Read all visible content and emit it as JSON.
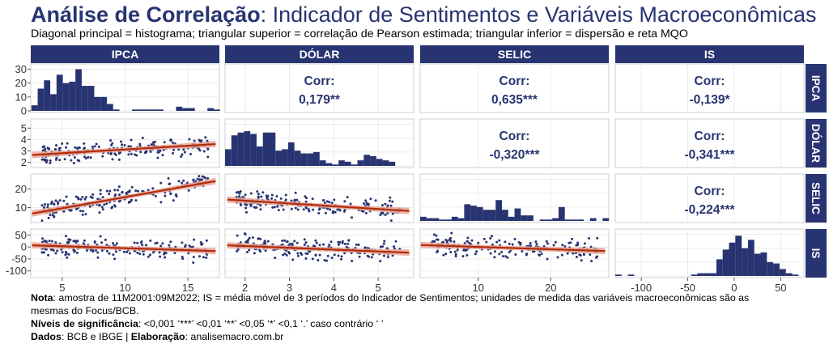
{
  "title": {
    "bold": "Análise de Correlação",
    "rest": ": Indicador de Sentimentos e Variáveis Macroeconômicas"
  },
  "subtitle": "Diagonal principal = histograma; triangular superior = correlação de Pearson estimada; triangular inferior = dispersão e reta MQO",
  "colors": {
    "header_bg": "#283471",
    "points": "#283471",
    "bars": "#283471",
    "fit_line": "#b22a08",
    "fit_band": "#e8a79a",
    "text_dark": "#283471",
    "grid": "#ebebeb"
  },
  "variables": [
    "IPCA",
    "DÓLAR",
    "SELIC",
    "IS"
  ],
  "corr_label": "Corr:",
  "correlations": [
    {
      "row": 0,
      "col": 1,
      "value": "0,179**"
    },
    {
      "row": 0,
      "col": 2,
      "value": "0,635***"
    },
    {
      "row": 0,
      "col": 3,
      "value": "-0,139*"
    },
    {
      "row": 1,
      "col": 2,
      "value": "-0,320***"
    },
    {
      "row": 1,
      "col": 3,
      "value": "-0,341***"
    },
    {
      "row": 2,
      "col": 3,
      "value": "-0,224***"
    }
  ],
  "y_ticks": [
    {
      "row": 0,
      "labels": [
        "0",
        "10",
        "20",
        "30"
      ]
    },
    {
      "row": 1,
      "labels": [
        "2",
        "3",
        "4",
        "5"
      ]
    },
    {
      "row": 2,
      "labels": [
        "10",
        "20"
      ]
    },
    {
      "row": 3,
      "labels": [
        "-100",
        "-50",
        "0",
        "50"
      ]
    }
  ],
  "x_ticks": [
    {
      "col": 0,
      "labels": [
        "5",
        "10",
        "15"
      ]
    },
    {
      "col": 1,
      "labels": [
        "2",
        "3",
        "4",
        "5"
      ]
    },
    {
      "col": 2,
      "labels": [
        "10",
        "20"
      ]
    },
    {
      "col": 3,
      "labels": [
        "-100",
        "-50",
        "0",
        "50"
      ]
    }
  ],
  "notes": {
    "nota_label": "Nota",
    "nota_text1": ": amostra de 11M2001:09M2022; IS = média móvel de 3 períodos do Indicador de Sentimentos; unidades de medida das variáveis macroeconômicas são as",
    "nota_text2": "mesmas do Focus/BCB.",
    "sig_label": "Níveis de significância",
    "sig_text": ": <0,001 ‘***’      <0,01 ‘**’  <0,05  ‘*’      <0,1 ‘.’      caso contrário ‘    ’",
    "dados_label": "Dados",
    "dados_text": ": BCB e IBGE | ",
    "elab_label": "Elaboração",
    "elab_text": ": analisemacro.com.br"
  },
  "chart_data": {
    "type": "scatter",
    "title": "Análise de Correlação: Indicador de Sentimentos e Variáveis Macroeconômicas",
    "variables": [
      "IPCA",
      "DÓLAR",
      "SELIC",
      "IS"
    ],
    "ranges": {
      "IPCA": [
        2.5,
        17.5
      ],
      "DÓLAR": [
        1.55,
        5.8
      ],
      "SELIC": [
        2,
        28
      ],
      "IS": [
        -128,
        75
      ]
    },
    "correlation_matrix": [
      [
        1,
        0.179,
        0.635,
        -0.139
      ],
      [
        0.179,
        1,
        -0.32,
        -0.341
      ],
      [
        0.635,
        -0.32,
        1,
        -0.224
      ],
      [
        -0.139,
        -0.341,
        -0.224,
        1
      ]
    ],
    "fits": {
      "DÓLAR~IPCA": {
        "x": [
          2.6,
          17.2
        ],
        "y": [
          2.65,
          3.6
        ]
      },
      "SELIC~IPCA": {
        "x": [
          2.6,
          17.2
        ],
        "y": [
          6.8,
          24.2
        ]
      },
      "IS~IPCA": {
        "x": [
          2.6,
          17.2
        ],
        "y": [
          7,
          -17
        ]
      },
      "SELIC~DÓLAR": {
        "x": [
          1.6,
          5.7
        ],
        "y": [
          14.3,
          8.2
        ]
      },
      "IS~DÓLAR": {
        "x": [
          1.6,
          5.7
        ],
        "y": [
          7,
          -24
        ]
      },
      "IS~SELIC": {
        "x": [
          2.1,
          27.5
        ],
        "y": [
          8,
          -17
        ]
      }
    },
    "histograms": {
      "IPCA": {
        "edges_start": 2.55,
        "bin_width": 0.5,
        "counts": [
          4,
          16,
          22,
          12,
          26,
          20,
          21,
          30,
          18,
          18,
          10,
          10,
          5,
          1,
          0,
          0,
          1,
          1,
          1,
          1,
          1,
          0,
          0,
          3,
          2,
          2,
          0,
          0,
          2,
          1
        ]
      },
      "DÓLAR": {
        "edges_start": 1.55,
        "bin_width": 0.142,
        "counts": [
          12,
          22,
          24,
          25,
          23,
          14,
          24,
          24,
          11,
          12,
          17,
          11,
          9,
          9,
          10,
          4,
          2,
          1,
          4,
          3,
          1,
          4,
          8,
          7,
          5,
          4,
          3,
          0,
          0,
          0
        ]
      },
      "SELIC": {
        "edges_start": 2.0,
        "bin_width": 0.867,
        "counts": [
          3,
          2,
          2,
          1,
          1,
          3,
          2,
          12,
          11,
          10,
          8,
          8,
          15,
          8,
          3,
          9,
          4,
          4,
          0,
          1,
          1,
          2,
          10,
          1,
          1,
          1,
          0,
          2,
          0,
          2
        ]
      },
      "IS": {
        "edges_start": -128,
        "bin_width": 6.8,
        "counts": [
          1,
          0,
          1,
          0,
          0,
          0,
          0,
          0,
          0,
          0,
          0,
          0,
          1,
          2,
          2,
          2,
          12,
          19,
          24,
          29,
          20,
          26,
          16,
          17,
          10,
          9,
          5,
          2,
          1,
          0
        ]
      }
    }
  }
}
